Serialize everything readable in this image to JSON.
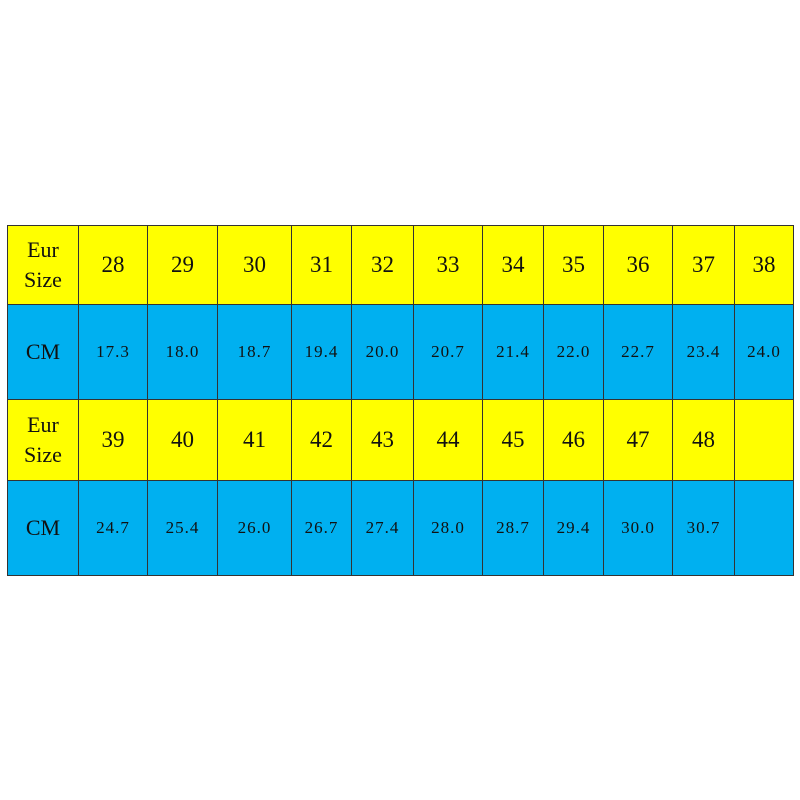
{
  "table": {
    "row_label_eur": "Eur Size",
    "row_label_eur_line1": "Eur",
    "row_label_eur_line2": "Size",
    "row_label_cm": "CM",
    "colors": {
      "eur_row": "#ffff00",
      "cm_row": "#00b0f0",
      "border": "#333333"
    },
    "block1": {
      "eur": [
        "28",
        "29",
        "30",
        "31",
        "32",
        "33",
        "34",
        "35",
        "36",
        "37",
        "38"
      ],
      "cm": [
        "17.3",
        "18.0",
        "18.7",
        "19.4",
        "20.0",
        "20.7",
        "21.4",
        "22.0",
        "22.7",
        "23.4",
        "24.0"
      ]
    },
    "block2": {
      "eur": [
        "39",
        "40",
        "41",
        "42",
        "43",
        "44",
        "45",
        "46",
        "47",
        "48",
        ""
      ],
      "cm": [
        "24.7",
        "25.4",
        "26.0",
        "26.7",
        "27.4",
        "28.0",
        "28.7",
        "29.4",
        "30.0",
        "30.7",
        ""
      ]
    }
  }
}
